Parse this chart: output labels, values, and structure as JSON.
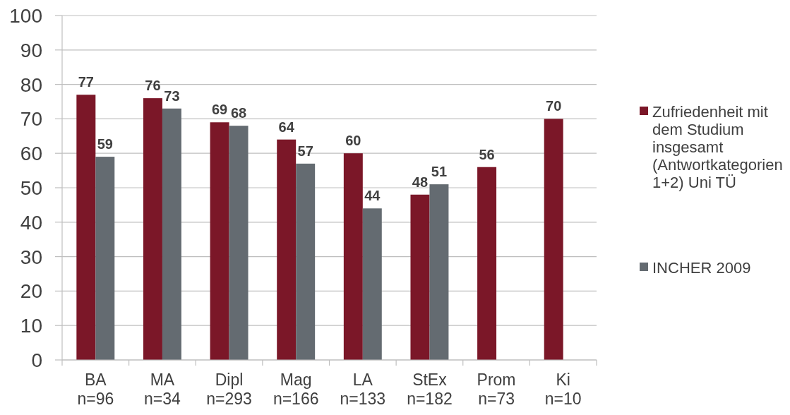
{
  "chart_data": {
    "type": "bar",
    "categories": [
      "BA\nn=96",
      "MA\nn=34",
      "Dipl\nn=293",
      "Mag\nn=166",
      "LA\nn=133",
      "StEx\nn=182",
      "Prom\nn=73",
      "Ki\nn=10"
    ],
    "series": [
      {
        "name": "Zufriedenheit mit dem Studium insgesamt (Antwortkategorien 1+2) Uni TÜ",
        "color": "#7b1728",
        "values": [
          77,
          76,
          69,
          64,
          60,
          48,
          56,
          70
        ]
      },
      {
        "name": "INCHER 2009",
        "color": "#646b71",
        "values": [
          59,
          73,
          68,
          57,
          44,
          51,
          null,
          null
        ]
      }
    ],
    "ylim": [
      0,
      100
    ],
    "yticks": [
      0,
      10,
      20,
      30,
      40,
      50,
      60,
      70,
      80,
      90,
      100
    ],
    "grid": "y",
    "legend": "right",
    "data_labels": true
  }
}
